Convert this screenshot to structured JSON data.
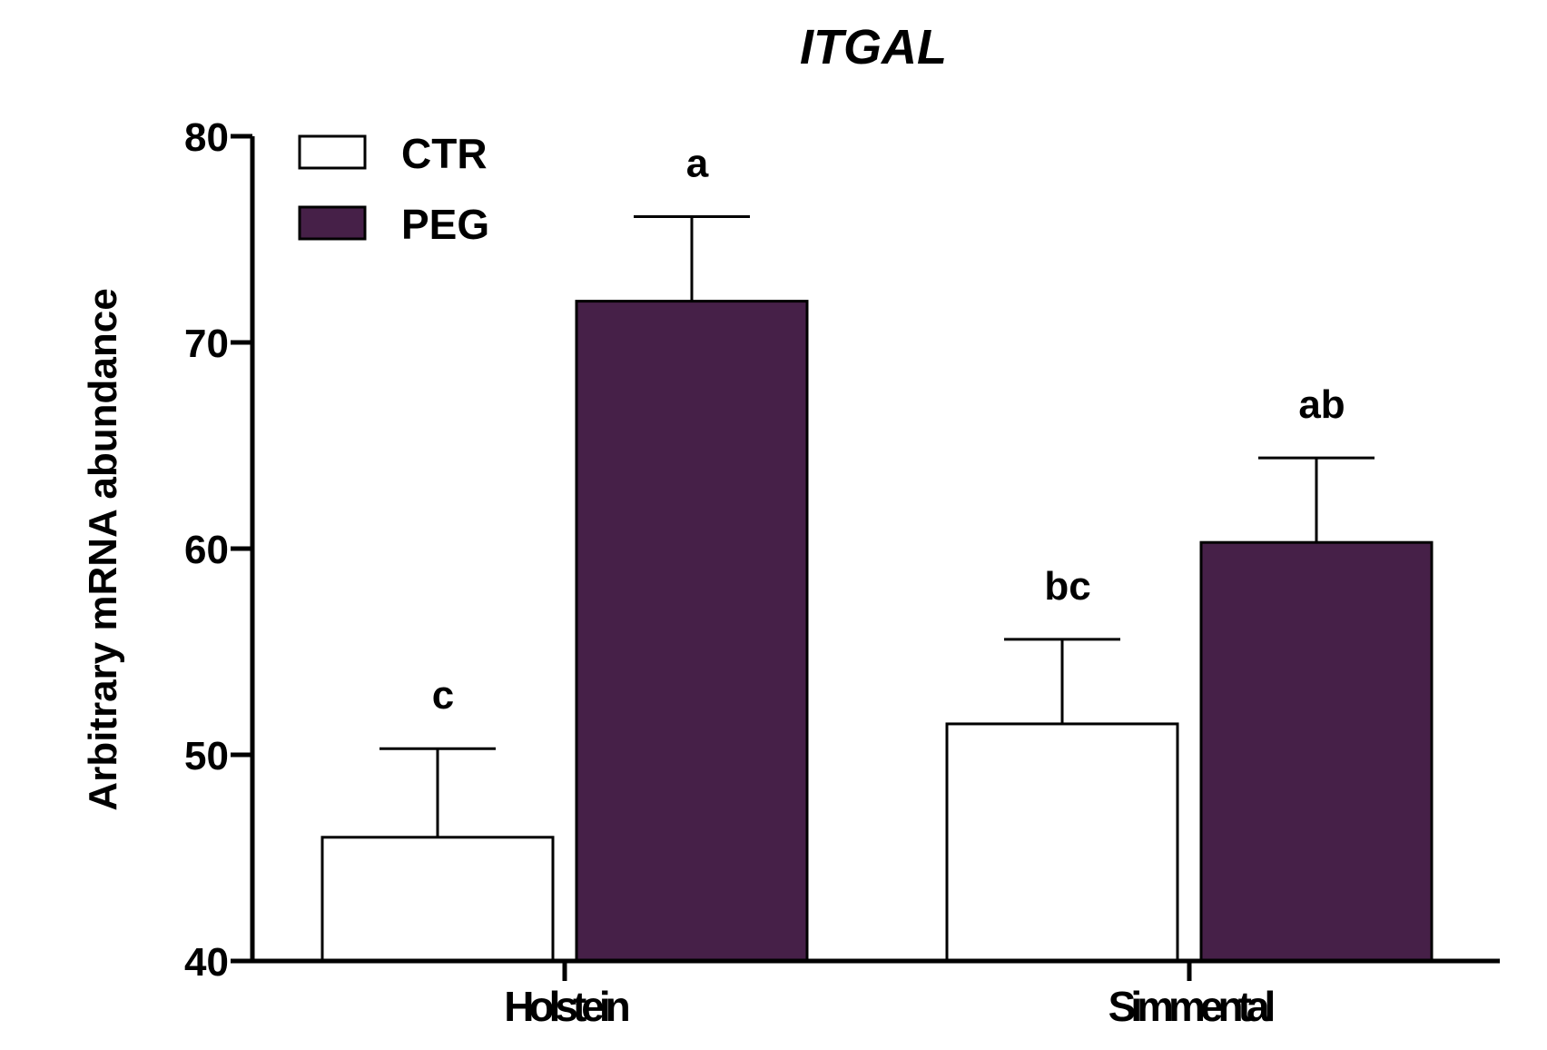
{
  "chart_data": {
    "type": "bar",
    "title": "ITGAL",
    "xlabel": "",
    "ylabel": "Arbitrary mRNA abundance",
    "ylim": [
      40,
      80
    ],
    "yticks": [
      40,
      50,
      60,
      70,
      80
    ],
    "categories": [
      "Holstein",
      "Simmental"
    ],
    "series": [
      {
        "name": "CTR",
        "color": "#ffffff",
        "values": [
          46.0,
          51.5
        ],
        "errors": [
          4.3,
          4.1
        ],
        "sig_labels": [
          "c",
          "bc"
        ]
      },
      {
        "name": "PEG",
        "color": "#462048",
        "values": [
          72.0,
          60.3
        ],
        "errors": [
          4.1,
          4.1
        ],
        "sig_labels": [
          "a",
          "ab"
        ]
      }
    ],
    "legend_position": "top-left",
    "grid": false
  }
}
